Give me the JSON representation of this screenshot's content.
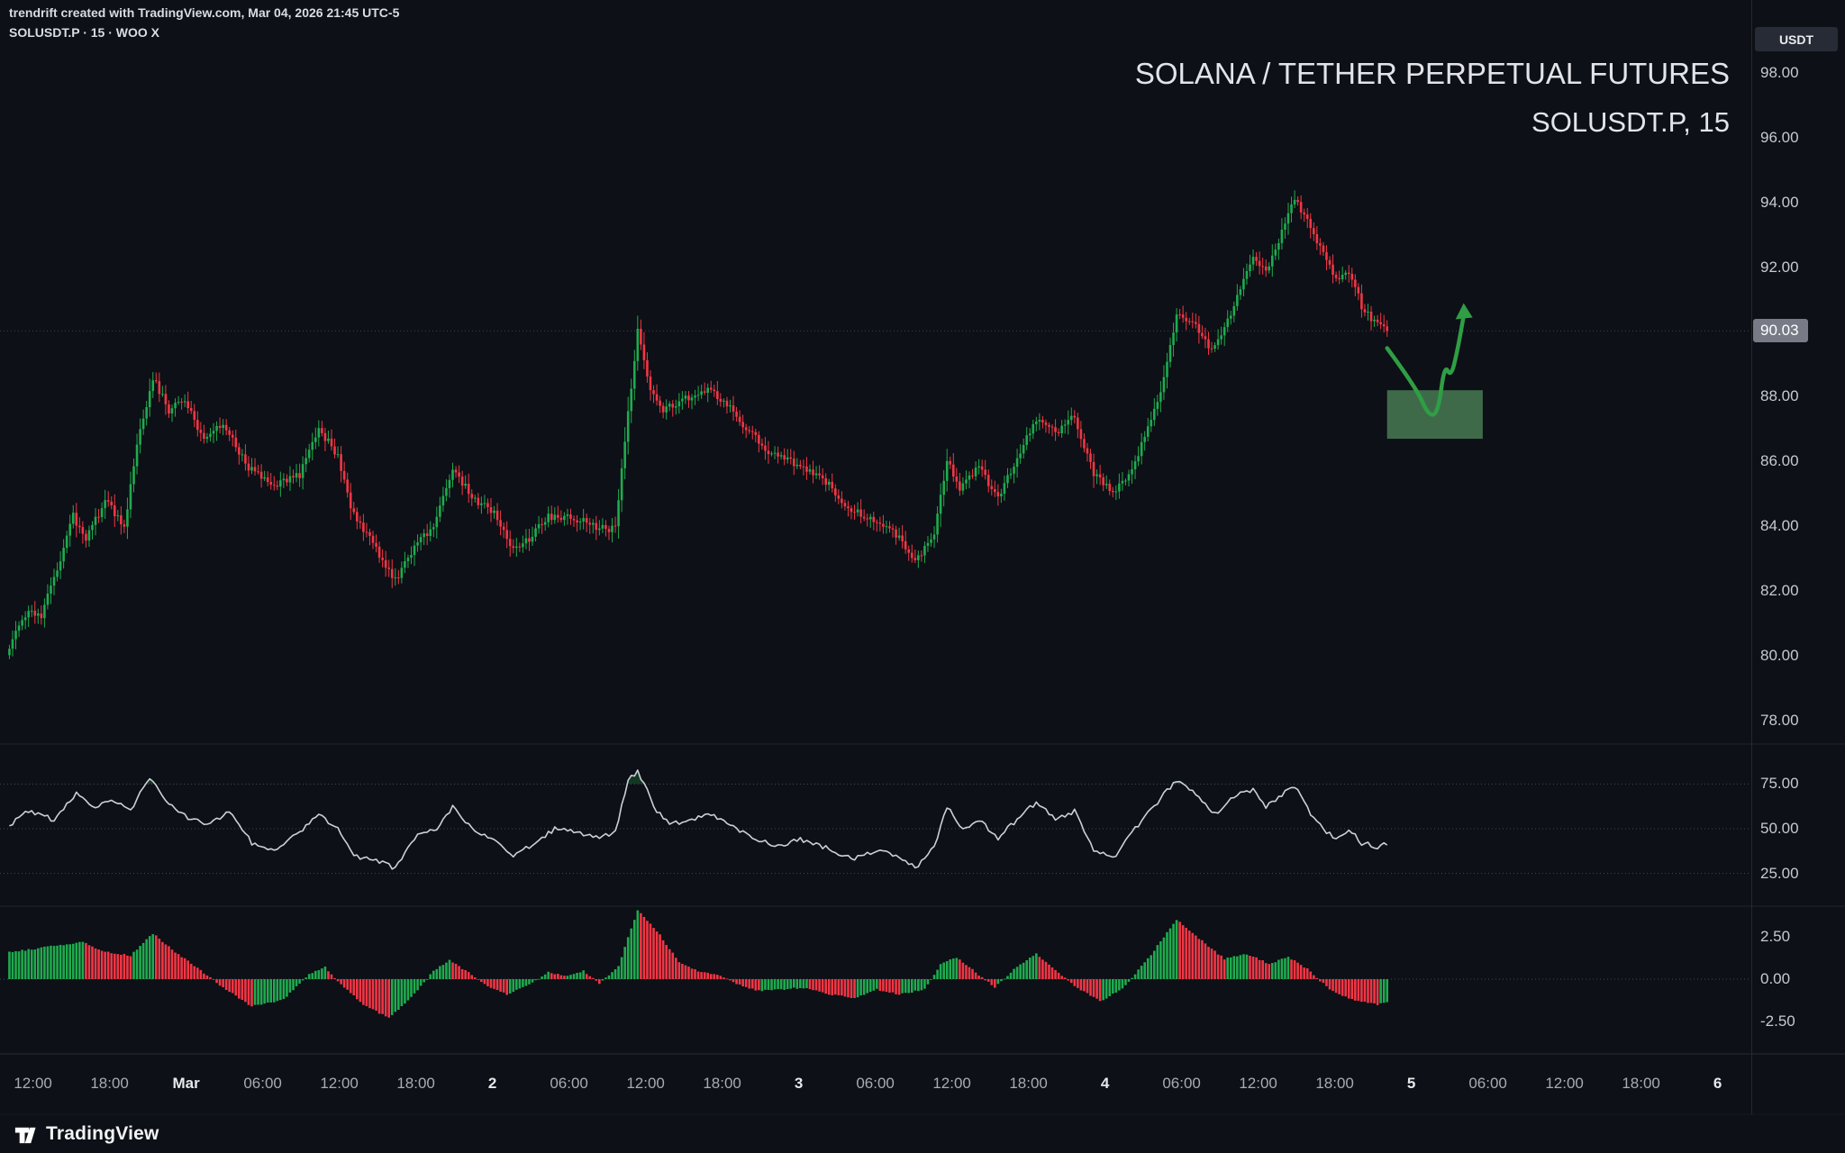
{
  "watermark": {
    "line1": "trendrift created with TradingView.com, Mar 04, 2026 21:45 UTC-5",
    "line2": "SOLUSDT.P · 15 · WOO X"
  },
  "titles": {
    "main": "SOLANA / TETHER PERPETUAL FUTURES",
    "symbol": "SOLUSDT.P, 15"
  },
  "price_axis": {
    "currency_badge": "USDT",
    "last_price": "90.03",
    "main_labels": [
      {
        "text": "98.00",
        "value": 98
      },
      {
        "text": "96.00",
        "value": 96
      },
      {
        "text": "94.00",
        "value": 94
      },
      {
        "text": "92.00",
        "value": 92
      },
      {
        "text": "88.00",
        "value": 88
      },
      {
        "text": "86.00",
        "value": 86
      },
      {
        "text": "84.00",
        "value": 84
      },
      {
        "text": "82.00",
        "value": 82
      },
      {
        "text": "80.00",
        "value": 80
      },
      {
        "text": "78.00",
        "value": 78
      }
    ],
    "rsi_labels": [
      {
        "text": "75.00",
        "value": 75
      },
      {
        "text": "50.00",
        "value": 50
      },
      {
        "text": "25.00",
        "value": 25
      }
    ],
    "macd_labels": [
      {
        "text": "2.50",
        "value": 2.5
      },
      {
        "text": "0.00",
        "value": 0
      },
      {
        "text": "-2.50",
        "value": -2.5
      }
    ]
  },
  "time_axis": {
    "labels": [
      {
        "text": "12:00",
        "major": false
      },
      {
        "text": "18:00",
        "major": false
      },
      {
        "text": "Mar",
        "major": true
      },
      {
        "text": "06:00",
        "major": false
      },
      {
        "text": "12:00",
        "major": false
      },
      {
        "text": "18:00",
        "major": false
      },
      {
        "text": "2",
        "major": true
      },
      {
        "text": "06:00",
        "major": false
      },
      {
        "text": "12:00",
        "major": false
      },
      {
        "text": "18:00",
        "major": false
      },
      {
        "text": "3",
        "major": true
      },
      {
        "text": "06:00",
        "major": false
      },
      {
        "text": "12:00",
        "major": false
      },
      {
        "text": "18:00",
        "major": false
      },
      {
        "text": "4",
        "major": true
      },
      {
        "text": "06:00",
        "major": false
      },
      {
        "text": "12:00",
        "major": false
      },
      {
        "text": "18:00",
        "major": false
      },
      {
        "text": "5",
        "major": true
      },
      {
        "text": "06:00",
        "major": false
      },
      {
        "text": "12:00",
        "major": false
      },
      {
        "text": "18:00",
        "major": false
      },
      {
        "text": "6",
        "major": true
      }
    ]
  },
  "footer": {
    "brand": "TradingView"
  },
  "colors": {
    "background": "#0d1016",
    "up": "#1fab4f",
    "down": "#f23645",
    "rsi_line": "#cdd0d8",
    "rsi_fill": "rgba(34,171,77,0.25)",
    "grid_dash": "#4a4e5a",
    "badge_bg": "#787b86",
    "annotation": "#2f9e44",
    "zone_fill": "rgba(76,129,87,0.8)"
  },
  "chart_data": [
    {
      "type": "candlestick",
      "title": "SOLANA / TETHER PERPETUAL FUTURES",
      "symbol": "SOLUSDT.P",
      "exchange": "WOO X",
      "interval_minutes": 15,
      "visible_range": "Feb 28 ~10:00 to Mar 4 21:45 (UTC-5)",
      "ylim": [
        77.5,
        98.6
      ],
      "y_ticks": [
        98,
        96,
        94,
        92,
        90,
        88,
        86,
        84,
        82,
        80,
        78
      ],
      "num_candles": 433,
      "last_close": 90.03,
      "price_path_anchors": [
        [
          0,
          80.3
        ],
        [
          6,
          81.5
        ],
        [
          10,
          81.2
        ],
        [
          16,
          83.0
        ],
        [
          20,
          84.3
        ],
        [
          24,
          83.6
        ],
        [
          30,
          84.8
        ],
        [
          36,
          84.0
        ],
        [
          40,
          86.5
        ],
        [
          45,
          88.6
        ],
        [
          50,
          87.6
        ],
        [
          55,
          87.9
        ],
        [
          61,
          86.6
        ],
        [
          67,
          87.2
        ],
        [
          75,
          85.8
        ],
        [
          83,
          85.3
        ],
        [
          91,
          85.6
        ],
        [
          97,
          87.0
        ],
        [
          103,
          86.2
        ],
        [
          107,
          84.5
        ],
        [
          115,
          83.3
        ],
        [
          121,
          82.3
        ],
        [
          127,
          83.4
        ],
        [
          133,
          84.0
        ],
        [
          139,
          85.8
        ],
        [
          145,
          84.9
        ],
        [
          152,
          84.4
        ],
        [
          158,
          83.3
        ],
        [
          163,
          83.6
        ],
        [
          169,
          84.3
        ],
        [
          176,
          84.3
        ],
        [
          184,
          84.0
        ],
        [
          190,
          83.9
        ],
        [
          194,
          87.5
        ],
        [
          197,
          90.0
        ],
        [
          201,
          88.3
        ],
        [
          205,
          87.6
        ],
        [
          211,
          87.9
        ],
        [
          220,
          88.2
        ],
        [
          225,
          87.8
        ],
        [
          231,
          87.0
        ],
        [
          239,
          86.2
        ],
        [
          248,
          85.9
        ],
        [
          256,
          85.4
        ],
        [
          264,
          84.5
        ],
        [
          272,
          84.2
        ],
        [
          277,
          83.9
        ],
        [
          284,
          82.9
        ],
        [
          290,
          83.8
        ],
        [
          294,
          86.0
        ],
        [
          298,
          85.2
        ],
        [
          304,
          85.8
        ],
        [
          310,
          84.9
        ],
        [
          315,
          85.9
        ],
        [
          322,
          87.3
        ],
        [
          328,
          86.9
        ],
        [
          334,
          87.4
        ],
        [
          340,
          85.6
        ],
        [
          346,
          85.0
        ],
        [
          352,
          85.7
        ],
        [
          360,
          87.8
        ],
        [
          366,
          90.5
        ],
        [
          372,
          90.2
        ],
        [
          377,
          89.4
        ],
        [
          384,
          90.8
        ],
        [
          390,
          92.3
        ],
        [
          394,
          91.8
        ],
        [
          398,
          92.8
        ],
        [
          403,
          94.1
        ],
        [
          408,
          93.2
        ],
        [
          412,
          92.4
        ],
        [
          416,
          91.6
        ],
        [
          420,
          91.9
        ],
        [
          424,
          90.8
        ],
        [
          428,
          90.3
        ],
        [
          432,
          90.03
        ]
      ],
      "annotations": {
        "demand_zone_rect": {
          "idx_from": 432,
          "idx_to": 462,
          "price_low": 86.7,
          "price_high": 88.2
        },
        "projection_arrow_points": [
          [
            432,
            89.5
          ],
          [
            441,
            88.3
          ],
          [
            445,
            87.4
          ],
          [
            448,
            87.5
          ],
          [
            450,
            89.0
          ],
          [
            452,
            88.6
          ],
          [
            454,
            89.4
          ],
          [
            456,
            90.5
          ]
        ]
      }
    },
    {
      "type": "line",
      "name": "RSI",
      "levels": [
        75,
        50,
        25
      ],
      "range_hint": [
        20,
        85
      ],
      "anchors": [
        [
          0,
          52
        ],
        [
          6,
          60
        ],
        [
          14,
          55
        ],
        [
          21,
          70
        ],
        [
          27,
          62
        ],
        [
          32,
          66
        ],
        [
          38,
          60
        ],
        [
          44,
          79
        ],
        [
          49,
          65
        ],
        [
          54,
          58
        ],
        [
          62,
          52
        ],
        [
          69,
          60
        ],
        [
          76,
          42
        ],
        [
          84,
          38
        ],
        [
          91,
          48
        ],
        [
          97,
          58
        ],
        [
          104,
          48
        ],
        [
          108,
          35
        ],
        [
          115,
          32
        ],
        [
          121,
          28
        ],
        [
          127,
          45
        ],
        [
          134,
          50
        ],
        [
          139,
          62
        ],
        [
          145,
          50
        ],
        [
          152,
          44
        ],
        [
          158,
          35
        ],
        [
          165,
          42
        ],
        [
          171,
          50
        ],
        [
          178,
          48
        ],
        [
          185,
          45
        ],
        [
          190,
          48
        ],
        [
          194,
          78
        ],
        [
          197,
          82
        ],
        [
          203,
          60
        ],
        [
          207,
          52
        ],
        [
          213,
          55
        ],
        [
          220,
          58
        ],
        [
          226,
          52
        ],
        [
          233,
          45
        ],
        [
          241,
          40
        ],
        [
          248,
          44
        ],
        [
          255,
          40
        ],
        [
          264,
          33
        ],
        [
          272,
          38
        ],
        [
          278,
          35
        ],
        [
          284,
          28
        ],
        [
          290,
          40
        ],
        [
          294,
          62
        ],
        [
          299,
          50
        ],
        [
          304,
          55
        ],
        [
          310,
          45
        ],
        [
          316,
          55
        ],
        [
          322,
          65
        ],
        [
          328,
          55
        ],
        [
          334,
          60
        ],
        [
          340,
          38
        ],
        [
          346,
          33
        ],
        [
          352,
          48
        ],
        [
          360,
          65
        ],
        [
          366,
          77
        ],
        [
          372,
          70
        ],
        [
          378,
          58
        ],
        [
          384,
          68
        ],
        [
          390,
          72
        ],
        [
          394,
          62
        ],
        [
          398,
          68
        ],
        [
          403,
          74
        ],
        [
          408,
          58
        ],
        [
          412,
          50
        ],
        [
          416,
          44
        ],
        [
          420,
          50
        ],
        [
          424,
          42
        ],
        [
          429,
          40
        ],
        [
          432,
          42
        ]
      ]
    },
    {
      "type": "bar",
      "name": "MACD histogram",
      "zero_line": 0,
      "y_ticks": [
        2.5,
        0,
        -2.5
      ],
      "anchors": [
        [
          0,
          1.6
        ],
        [
          8,
          1.8
        ],
        [
          15,
          2.0
        ],
        [
          23,
          2.2
        ],
        [
          30,
          1.6
        ],
        [
          38,
          1.4
        ],
        [
          45,
          2.7
        ],
        [
          52,
          1.6
        ],
        [
          60,
          0.5
        ],
        [
          67,
          -0.5
        ],
        [
          76,
          -1.6
        ],
        [
          86,
          -1.2
        ],
        [
          94,
          0.3
        ],
        [
          99,
          0.7
        ],
        [
          104,
          -0.3
        ],
        [
          111,
          -1.5
        ],
        [
          119,
          -2.3
        ],
        [
          126,
          -1.1
        ],
        [
          133,
          0.5
        ],
        [
          138,
          1.1
        ],
        [
          144,
          0.4
        ],
        [
          150,
          -0.4
        ],
        [
          156,
          -0.9
        ],
        [
          163,
          -0.3
        ],
        [
          169,
          0.4
        ],
        [
          174,
          0.2
        ],
        [
          180,
          0.5
        ],
        [
          185,
          -0.3
        ],
        [
          191,
          0.8
        ],
        [
          197,
          4.1
        ],
        [
          204,
          2.6
        ],
        [
          210,
          1.0
        ],
        [
          217,
          0.4
        ],
        [
          222,
          0.3
        ],
        [
          228,
          -0.3
        ],
        [
          235,
          -0.7
        ],
        [
          242,
          -0.6
        ],
        [
          250,
          -0.5
        ],
        [
          257,
          -0.9
        ],
        [
          265,
          -1.1
        ],
        [
          272,
          -0.6
        ],
        [
          279,
          -0.9
        ],
        [
          287,
          -0.6
        ],
        [
          292,
          0.9
        ],
        [
          297,
          1.3
        ],
        [
          303,
          0.4
        ],
        [
          309,
          -0.5
        ],
        [
          315,
          0.6
        ],
        [
          322,
          1.5
        ],
        [
          327,
          0.7
        ],
        [
          334,
          -0.4
        ],
        [
          342,
          -1.3
        ],
        [
          349,
          -0.6
        ],
        [
          357,
          1.2
        ],
        [
          366,
          3.5
        ],
        [
          373,
          2.4
        ],
        [
          381,
          1.2
        ],
        [
          388,
          1.5
        ],
        [
          395,
          0.9
        ],
        [
          401,
          1.3
        ],
        [
          407,
          0.6
        ],
        [
          414,
          -0.6
        ],
        [
          421,
          -1.2
        ],
        [
          429,
          -1.5
        ],
        [
          432,
          -1.4
        ]
      ]
    }
  ]
}
